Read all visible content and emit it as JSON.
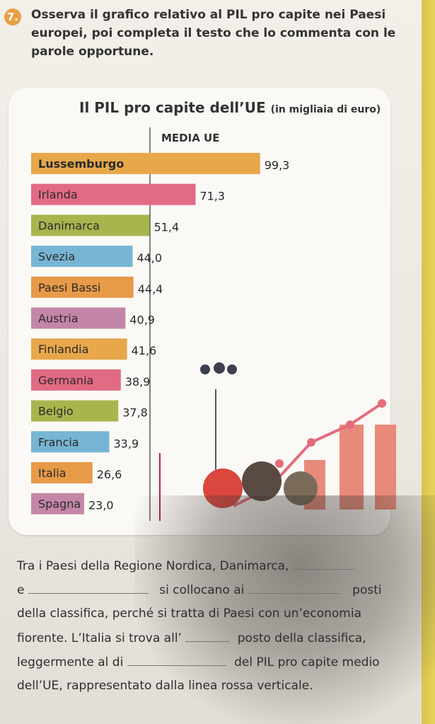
{
  "exercise": {
    "number": "7.",
    "instructions": "Osserva il grafico relativo al PIL pro capite nei Paesi europei, poi completa il testo che lo commenta con le parole opportune.",
    "text_lines": [
      "Tra i Paesi della Regione Nordica, Danimarca,",
      "e",
      "si collocano ai",
      "posti",
      "della classifica, perché si tratta di Paesi con un’economia",
      "fiorente. L’Italia si trova all’",
      "posto della classifica,",
      "leggermente al di",
      "del PIL pro capite medio",
      "dell’UE, rappresentato dalla linea rossa verticale."
    ]
  },
  "chart_data": {
    "type": "bar",
    "orientation": "horizontal",
    "title": "Il PIL pro capite dell’UE",
    "subtitle": "(in migliaia di euro)",
    "reference_line_label": "MEDIA UE",
    "categories": [
      "Lussemburgo",
      "Irlanda",
      "Danimarca",
      "Svezia",
      "Paesi Bassi",
      "Austria",
      "Finlandia",
      "Germania",
      "Belgio",
      "Francia",
      "Italia",
      "Spagna"
    ],
    "values": [
      99.3,
      71.3,
      51.4,
      44.0,
      44.4,
      40.9,
      41.6,
      38.9,
      37.8,
      33.9,
      26.6,
      23.0
    ],
    "value_labels": [
      "99,3",
      "71,3",
      "51,4",
      "44,0",
      "44,4",
      "40,9",
      "41,6",
      "38,9",
      "37,8",
      "33,9",
      "26,6",
      "23,0"
    ],
    "colors": [
      "#e7a74a",
      "#e26a84",
      "#a8b54e",
      "#77b5d4",
      "#e79a48",
      "#c486a8",
      "#e7a74a",
      "#e26a84",
      "#a8b54e",
      "#77b5d4",
      "#e79a48",
      "#c486a8"
    ],
    "reference_color": "#c0233a"
  }
}
